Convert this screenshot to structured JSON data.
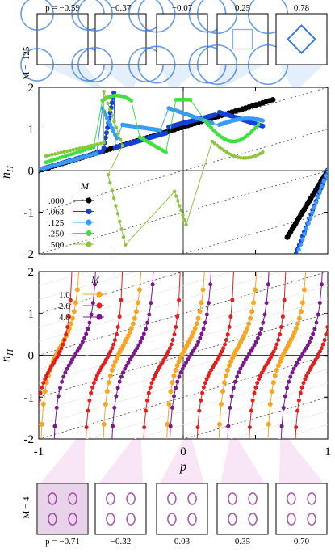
{
  "top_row": {
    "side_label": "M = .125",
    "labels": [
      "p = −0.59",
      "−0.37",
      "−0.07",
      "0.25",
      "0.78"
    ],
    "p_values": [
      -0.59,
      -0.37,
      -0.07,
      0.25,
      0.78
    ],
    "color": "#3a7ad8"
  },
  "bottom_row": {
    "side_label": "M = 4",
    "labels": [
      "p = −0.71",
      "−0.32",
      "0.03",
      "0.35",
      "0.70"
    ],
    "p_values": [
      -0.71,
      -0.32,
      0.03,
      0.35,
      0.7
    ],
    "color": "#8e2a8e"
  },
  "chart_data": [
    {
      "type": "scatter",
      "panel": "upper",
      "ylabel": "nH",
      "xlim": [
        -1,
        1
      ],
      "ylim": [
        -2,
        2
      ],
      "yticks": [
        "2",
        "1",
        "0",
        "-1",
        "-2"
      ],
      "legend_title": "M",
      "legend_position": "left",
      "series": [
        {
          "name": ".000",
          "color": "#000000"
        },
        {
          "name": ".063",
          "color": "#1540d8"
        },
        {
          "name": ".125",
          "color": "#3a9cf0"
        },
        {
          "name": ".250",
          "color": "#3fe03f"
        },
        {
          "name": ".500",
          "color": "#8cc63c"
        }
      ]
    },
    {
      "type": "scatter",
      "panel": "lower",
      "xlabel": "p",
      "ylabel": "nH",
      "xlim": [
        -1,
        1
      ],
      "ylim": [
        -2,
        2
      ],
      "xticks": [
        "-1",
        "0",
        "1"
      ],
      "yticks": [
        "2",
        "1",
        "0",
        "-1",
        "-2"
      ],
      "legend_title": "M",
      "legend_position": "top-left",
      "series": [
        {
          "name": "1.0",
          "color": "#f5a623"
        },
        {
          "name": "2.0",
          "color": "#e02020"
        },
        {
          "name": "4.0",
          "color": "#7a1a8a"
        }
      ]
    }
  ]
}
